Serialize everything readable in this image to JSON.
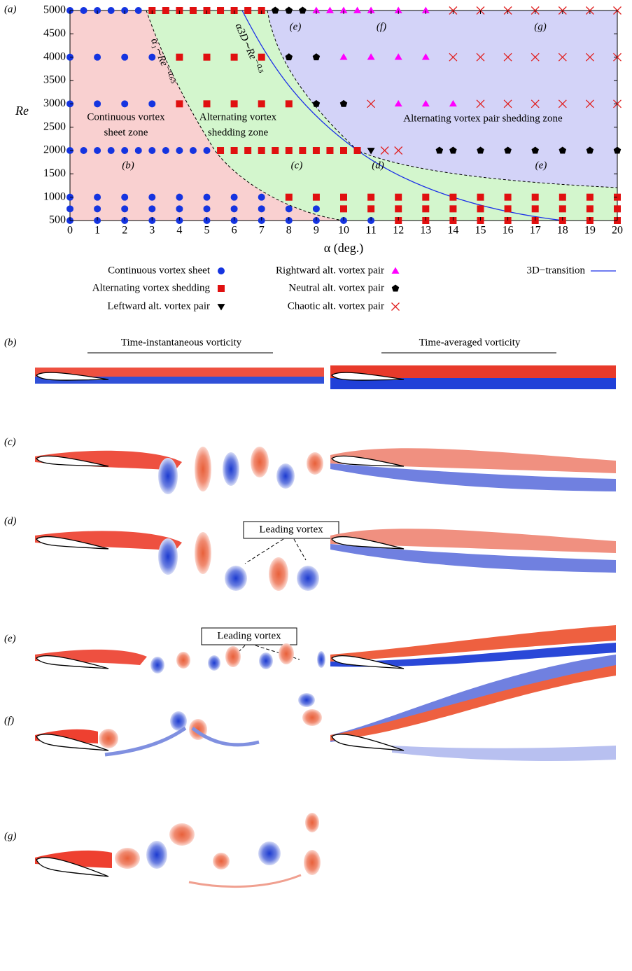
{
  "chart_data": {
    "type": "scatter",
    "label": "(a)",
    "x_label": "α (deg.)",
    "y_label": "Re",
    "xlim": [
      0,
      20
    ],
    "ylim": [
      500,
      5000
    ],
    "xticks": [
      0,
      1,
      2,
      3,
      4,
      5,
      6,
      7,
      8,
      9,
      10,
      11,
      12,
      13,
      14,
      15,
      16,
      17,
      18,
      19,
      20
    ],
    "yticks": [
      500,
      1000,
      1500,
      2000,
      2500,
      3000,
      3500,
      4000,
      4500,
      5000
    ],
    "series": [
      {
        "name": "Continuous vortex sheet",
        "color": "#1534e0",
        "marker": "circle",
        "x": [
          0,
          1,
          2,
          3,
          4,
          5,
          6,
          7,
          8,
          9,
          10,
          11,
          0,
          1,
          2,
          3,
          4,
          5,
          6,
          7,
          8,
          9,
          0,
          1,
          2,
          3,
          4,
          5,
          6,
          7,
          0,
          0.5,
          1,
          1.5,
          2,
          2.5,
          3,
          3.5,
          4,
          4.5,
          5,
          0,
          1,
          2,
          3,
          0,
          1,
          2,
          3,
          0,
          0.5,
          1,
          1.5,
          2,
          2.5
        ],
        "y": [
          500,
          500,
          500,
          500,
          500,
          500,
          500,
          500,
          500,
          500,
          500,
          500,
          750,
          750,
          750,
          750,
          750,
          750,
          750,
          750,
          750,
          750,
          1000,
          1000,
          1000,
          1000,
          1000,
          1000,
          1000,
          1000,
          2000,
          2000,
          2000,
          2000,
          2000,
          2000,
          2000,
          2000,
          2000,
          2000,
          2000,
          3000,
          3000,
          3000,
          3000,
          4000,
          4000,
          4000,
          4000,
          5000,
          5000,
          5000,
          5000,
          5000,
          5000
        ]
      },
      {
        "name": "Alternating vortex shedding",
        "color": "#e01010",
        "marker": "square",
        "x": [
          12,
          13,
          14,
          15,
          16,
          17,
          18,
          19,
          20,
          10,
          11,
          12,
          13,
          14,
          15,
          16,
          17,
          18,
          19,
          20,
          8,
          9,
          10,
          11,
          12,
          13,
          14,
          15,
          16,
          17,
          18,
          19,
          20,
          5.5,
          6,
          6.5,
          7,
          7.5,
          8,
          8.5,
          9,
          9.5,
          10,
          10.5,
          4,
          5,
          6,
          7,
          8,
          4,
          5,
          6,
          7,
          3,
          3.5,
          4,
          4.5,
          5,
          5.5,
          6,
          6.5,
          7
        ],
        "y": [
          500,
          500,
          500,
          500,
          500,
          500,
          500,
          500,
          500,
          750,
          750,
          750,
          750,
          750,
          750,
          750,
          750,
          750,
          750,
          750,
          1000,
          1000,
          1000,
          1000,
          1000,
          1000,
          1000,
          1000,
          1000,
          1000,
          1000,
          1000,
          1000,
          2000,
          2000,
          2000,
          2000,
          2000,
          2000,
          2000,
          2000,
          2000,
          2000,
          2000,
          3000,
          3000,
          3000,
          3000,
          3000,
          4000,
          4000,
          4000,
          4000,
          5000,
          5000,
          5000,
          5000,
          5000,
          5000,
          5000,
          5000,
          5000
        ]
      },
      {
        "name": "Leftward alt. vortex pair",
        "color": "#000000",
        "marker": "triangle-down",
        "x": [
          11
        ],
        "y": [
          2000
        ]
      },
      {
        "name": "Rightward alt. vortex pair",
        "color": "#ff00ff",
        "marker": "triangle-up",
        "x": [
          12,
          13,
          14,
          10,
          11,
          12,
          13,
          9,
          9.5,
          10,
          10.5,
          11,
          12,
          13
        ],
        "y": [
          3000,
          3000,
          3000,
          4000,
          4000,
          4000,
          4000,
          5000,
          5000,
          5000,
          5000,
          5000,
          5000,
          5000
        ]
      },
      {
        "name": "Neutral alt. vortex pair",
        "color": "#000000",
        "marker": "pentagon",
        "x": [
          13.5,
          14,
          15,
          16,
          17,
          18,
          19,
          20,
          9,
          10,
          8,
          9,
          7.5,
          8,
          8.5
        ],
        "y": [
          2000,
          2000,
          2000,
          2000,
          2000,
          2000,
          2000,
          2000,
          3000,
          3000,
          4000,
          4000,
          5000,
          5000,
          5000
        ]
      },
      {
        "name": "Chaotic alt. vortex pair",
        "color": "#e02020",
        "marker": "cross",
        "x": [
          11.5,
          12,
          11,
          15,
          16,
          17,
          18,
          19,
          20,
          14,
          15,
          16,
          17,
          18,
          19,
          20,
          14,
          15,
          16,
          17,
          18,
          19,
          20
        ],
        "y": [
          2000,
          2000,
          3000,
          3000,
          3000,
          3000,
          3000,
          3000,
          3000,
          4000,
          4000,
          4000,
          4000,
          4000,
          4000,
          4000,
          5000,
          5000,
          5000,
          5000,
          5000,
          5000,
          5000
        ]
      },
      {
        "name": "3D−transition",
        "color": "#1a2ee8",
        "marker": "line"
      }
    ],
    "annotations": [
      "Continuous vortex",
      "sheet zone",
      "Alternating vortex",
      "shedding zone",
      "Alternating vortex pair shedding zone",
      "α₁∼Re⁻⁰·⁶⁵",
      "α3D∼Re⁻⁰·⁵",
      "(b)",
      "(c)",
      "(d)",
      "(e)",
      "(e)",
      "(f)",
      "(g)"
    ]
  },
  "panels": {
    "labels": [
      "(b)",
      "(c)",
      "(d)",
      "(e)",
      "(f)",
      "(g)"
    ],
    "column_titles": [
      "Time-instantaneous vorticity",
      "Time-averaged vorticity"
    ],
    "callouts": [
      "Leading vortex",
      "Leading vortex"
    ]
  }
}
